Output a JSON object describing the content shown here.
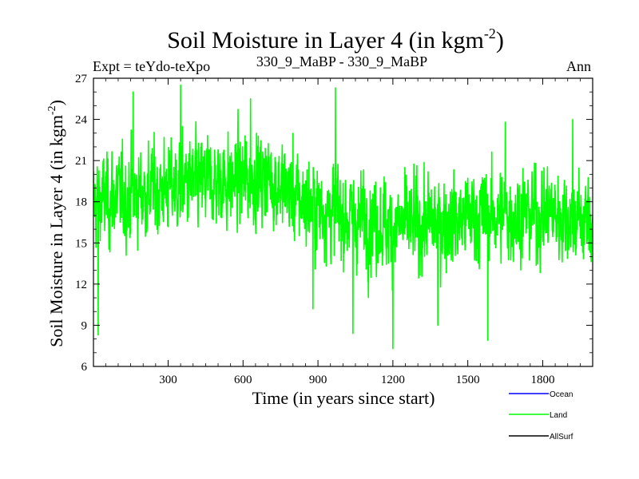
{
  "chart_data": {
    "type": "line",
    "title_main": "Soil Moisture in Layer 4 (in kgm",
    "title_sup": "-2",
    "title_close": ")",
    "subtitle_left": "Expt = teYdo-teXpo",
    "subtitle_center": "330_9_MaBP - 330_9_MaBP",
    "subtitle_right": "Ann",
    "ylabel_main": "Soil Moisture in Layer 4 (in kgm",
    "ylabel_sup": "-2",
    "ylabel_close": ")",
    "xlabel": "Time (in years since start)",
    "xlim": [
      1,
      2000
    ],
    "ylim": [
      6,
      27
    ],
    "x_ticks": [
      300,
      600,
      900,
      1200,
      1500,
      1800
    ],
    "y_ticks": [
      6,
      9,
      12,
      15,
      18,
      21,
      24,
      27
    ],
    "legend": [
      {
        "name": "Ocean",
        "color": "#0000ff"
      },
      {
        "name": "Land",
        "color": "#00ff00"
      },
      {
        "name": "AllSurf",
        "color": "#000000"
      }
    ],
    "series": [
      {
        "name": "Land",
        "color": "#00ff00",
        "n_points": 2000,
        "trend_x": [
          0,
          150,
          350,
          550,
          700,
          800,
          900,
          1000,
          1200,
          1400,
          1550,
          1700,
          1850,
          2000
        ],
        "trend_y": [
          18.0,
          18.5,
          19.2,
          19.5,
          19.8,
          18.5,
          17.5,
          17.0,
          16.2,
          16.5,
          17.0,
          17.0,
          17.2,
          16.5
        ],
        "noise_amplitude": 2.2,
        "extremes": [
          {
            "x": 20,
            "y": 8.3
          },
          {
            "x": 160,
            "y": 26.0
          },
          {
            "x": 350,
            "y": 26.5
          },
          {
            "x": 630,
            "y": 25.5
          },
          {
            "x": 880,
            "y": 10.2
          },
          {
            "x": 970,
            "y": 26.3
          },
          {
            "x": 1040,
            "y": 8.4
          },
          {
            "x": 1200,
            "y": 7.3
          },
          {
            "x": 1380,
            "y": 9.0
          },
          {
            "x": 1580,
            "y": 7.9
          },
          {
            "x": 1650,
            "y": 23.8
          },
          {
            "x": 1920,
            "y": 24.0
          }
        ]
      }
    ]
  }
}
